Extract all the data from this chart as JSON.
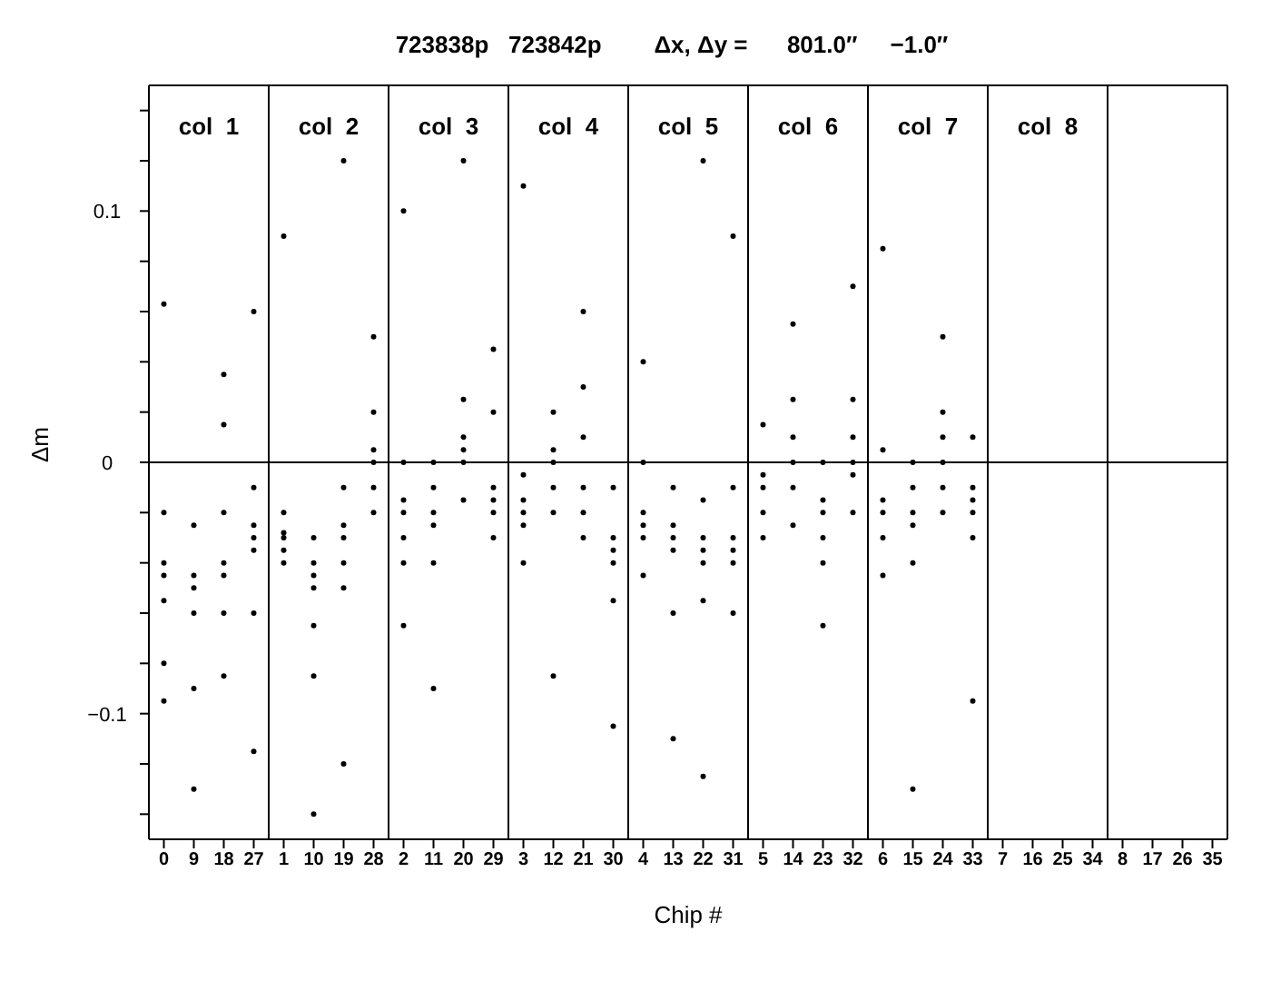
{
  "chart_data": [
    {
      "type": "scatter",
      "ylabel": "Δm",
      "marker": "circle",
      "annotations": [
        "col  1"
      ],
      "categories": [
        "0",
        "9",
        "18",
        "27"
      ],
      "ylim": [
        -0.15,
        0.15
      ],
      "yticks": [
        {
          "value": -0.14,
          "label": null
        },
        {
          "value": -0.12,
          "label": null
        },
        {
          "value": -0.1,
          "label": "−0.1"
        },
        {
          "value": -0.08,
          "label": null
        },
        {
          "value": -0.06,
          "label": null
        },
        {
          "value": -0.04,
          "label": null
        },
        {
          "value": -0.02,
          "label": null
        },
        0,
        {
          "value": 0.02,
          "label": null
        },
        {
          "value": 0.04,
          "label": null
        },
        {
          "value": 0.06,
          "label": null
        },
        {
          "value": 0.08,
          "label": null
        },
        {
          "value": 0.1,
          "label": "0.1"
        },
        {
          "value": 0.12,
          "label": null
        },
        {
          "value": 0.14,
          "label": null
        }
      ],
      "ref_lines": [
        {
          "axis": "y",
          "value": 0,
          "color": "#000000"
        }
      ],
      "series": [
        {
          "color": "#000000",
          "x": [
            "0",
            "0",
            "0",
            "0",
            "0",
            "9",
            "9",
            "9",
            "9",
            "9",
            "18",
            "18",
            "18",
            "18",
            "18",
            "27",
            "27",
            "27",
            "27",
            "27",
            "0",
            "18",
            "27",
            "18",
            "0",
            "9",
            "27"
          ],
          "values": [
            -0.02,
            -0.04,
            -0.08,
            -0.045,
            -0.055,
            -0.025,
            -0.045,
            -0.09,
            -0.05,
            -0.06,
            -0.02,
            -0.045,
            -0.085,
            -0.04,
            -0.06,
            -0.01,
            -0.03,
            -0.06,
            -0.035,
            -0.025,
            0.063,
            0.035,
            0.06,
            0.015,
            -0.095,
            -0.13,
            -0.115
          ]
        }
      ]
    },
    {
      "type": "scatter",
      "marker": "circle",
      "annotations": [
        "col  2"
      ],
      "categories": [
        "1",
        "10",
        "19",
        "28"
      ],
      "ylim": [
        -0.15,
        0.15
      ],
      "tick_labels": "x",
      "ref_lines": [
        {
          "axis": "y",
          "value": 0,
          "color": "#000000"
        }
      ],
      "series": [
        {
          "color": "#000000",
          "x": [
            "1",
            "1",
            "1",
            "1",
            "1",
            "10",
            "10",
            "10",
            "10",
            "10",
            "19",
            "19",
            "19",
            "19",
            "19",
            "28",
            "28",
            "28",
            "28",
            "28",
            "1",
            "19",
            "28",
            "10",
            "19",
            "10"
          ],
          "values": [
            -0.02,
            -0.03,
            -0.04,
            -0.028,
            -0.035,
            -0.03,
            -0.045,
            -0.065,
            -0.05,
            -0.04,
            -0.01,
            -0.03,
            -0.05,
            -0.025,
            -0.04,
            0.02,
            0,
            -0.02,
            0.005,
            -0.01,
            0.09,
            0.12,
            0.05,
            -0.085,
            -0.12,
            -0.14
          ]
        }
      ]
    },
    {
      "type": "scatter",
      "marker": "circle",
      "annotations": [
        "col  3"
      ],
      "categories": [
        "2",
        "11",
        "20",
        "29"
      ],
      "ylim": [
        -0.15,
        0.15
      ],
      "tick_labels": "x",
      "ref_lines": [
        {
          "axis": "y",
          "value": 0,
          "color": "#000000"
        }
      ],
      "series": [
        {
          "color": "#000000",
          "x": [
            "2",
            "2",
            "2",
            "2",
            "2",
            "11",
            "11",
            "11",
            "11",
            "11",
            "20",
            "20",
            "20",
            "20",
            "20",
            "29",
            "29",
            "29",
            "29",
            "29",
            "2",
            "20",
            "11",
            "29",
            "2"
          ],
          "values": [
            0,
            -0.02,
            -0.04,
            -0.015,
            -0.03,
            0,
            -0.02,
            -0.04,
            -0.025,
            -0.01,
            0.025,
            0.005,
            -0.015,
            0.01,
            0,
            0.02,
            -0.015,
            -0.03,
            -0.01,
            -0.02,
            0.1,
            0.12,
            -0.09,
            0.045,
            -0.065
          ]
        }
      ]
    },
    {
      "type": "scatter",
      "marker": "circle",
      "annotations": [
        "col  4"
      ],
      "categories": [
        "3",
        "12",
        "21",
        "30"
      ],
      "ylim": [
        -0.15,
        0.15
      ],
      "tick_labels": "x",
      "ref_lines": [
        {
          "axis": "y",
          "value": 0,
          "color": "#000000"
        }
      ],
      "series": [
        {
          "color": "#000000",
          "x": [
            "3",
            "3",
            "3",
            "3",
            "3",
            "12",
            "12",
            "12",
            "12",
            "12",
            "21",
            "21",
            "21",
            "21",
            "21",
            "30",
            "30",
            "30",
            "30",
            "30",
            "3",
            "21",
            "30",
            "12"
          ],
          "values": [
            -0.005,
            -0.02,
            -0.04,
            -0.025,
            -0.015,
            0.02,
            0,
            -0.02,
            0.005,
            -0.01,
            0.03,
            -0.01,
            -0.03,
            0.01,
            -0.02,
            -0.01,
            -0.035,
            -0.055,
            -0.04,
            -0.03,
            0.11,
            0.06,
            -0.105,
            -0.085
          ]
        }
      ]
    },
    {
      "type": "scatter",
      "title": "723838p   723842p        Δx, Δy =      801.0″     −1.0″",
      "xlabel": "Chip #",
      "marker": "circle",
      "annotations": [
        "col  5"
      ],
      "categories": [
        "4",
        "13",
        "22",
        "31"
      ],
      "ylim": [
        -0.15,
        0.15
      ],
      "tick_labels": "x",
      "ref_lines": [
        {
          "axis": "y",
          "value": 0,
          "color": "#000000"
        }
      ],
      "series": [
        {
          "color": "#000000",
          "x": [
            "4",
            "4",
            "4",
            "4",
            "4",
            "13",
            "13",
            "13",
            "13",
            "13",
            "22",
            "22",
            "22",
            "22",
            "22",
            "31",
            "31",
            "31",
            "31",
            "31",
            "4",
            "22",
            "31",
            "22",
            "13"
          ],
          "values": [
            0,
            -0.025,
            -0.045,
            -0.02,
            -0.03,
            -0.01,
            -0.03,
            -0.06,
            -0.035,
            -0.025,
            -0.015,
            -0.035,
            -0.055,
            -0.03,
            -0.04,
            -0.01,
            -0.035,
            -0.06,
            -0.04,
            -0.03,
            0.04,
            0.12,
            0.09,
            -0.125,
            -0.11
          ]
        }
      ]
    },
    {
      "type": "scatter",
      "marker": "circle",
      "annotations": [
        "col  6"
      ],
      "categories": [
        "5",
        "14",
        "23",
        "32"
      ],
      "ylim": [
        -0.15,
        0.15
      ],
      "tick_labels": "x",
      "ref_lines": [
        {
          "axis": "y",
          "value": 0,
          "color": "#000000"
        }
      ],
      "series": [
        {
          "color": "#000000",
          "x": [
            "5",
            "5",
            "5",
            "5",
            "5",
            "14",
            "14",
            "14",
            "14",
            "14",
            "23",
            "23",
            "23",
            "23",
            "23",
            "32",
            "32",
            "32",
            "32",
            "32",
            "14",
            "32",
            "23"
          ],
          "values": [
            0.015,
            -0.01,
            -0.03,
            -0.005,
            -0.02,
            0.025,
            0,
            -0.025,
            0.01,
            -0.01,
            0,
            -0.02,
            -0.04,
            -0.015,
            -0.03,
            0.025,
            0,
            -0.02,
            0.01,
            -0.005,
            0.055,
            0.07,
            -0.065
          ]
        }
      ]
    },
    {
      "type": "scatter",
      "marker": "circle",
      "annotations": [
        "col  7"
      ],
      "categories": [
        "6",
        "15",
        "24",
        "33"
      ],
      "ylim": [
        -0.15,
        0.15
      ],
      "tick_labels": "x",
      "ref_lines": [
        {
          "axis": "y",
          "value": 0,
          "color": "#000000"
        }
      ],
      "series": [
        {
          "color": "#000000",
          "x": [
            "6",
            "6",
            "6",
            "6",
            "6",
            "15",
            "15",
            "15",
            "15",
            "15",
            "24",
            "24",
            "24",
            "24",
            "24",
            "33",
            "33",
            "33",
            "33",
            "33",
            "6",
            "24",
            "15",
            "33"
          ],
          "values": [
            0.005,
            -0.02,
            -0.045,
            -0.015,
            -0.03,
            0,
            -0.02,
            -0.04,
            -0.025,
            -0.01,
            0.02,
            0,
            -0.02,
            0.01,
            -0.01,
            0.01,
            -0.015,
            -0.03,
            -0.01,
            -0.02,
            0.085,
            0.05,
            -0.13,
            -0.095
          ]
        }
      ]
    },
    {
      "type": "scatter",
      "annotations": [
        "col  8"
      ],
      "categories": [
        "7",
        "16",
        "25",
        "34"
      ],
      "ylim": [
        -0.15,
        0.15
      ],
      "tick_labels": "x",
      "ref_lines": [
        {
          "axis": "y",
          "value": 0,
          "color": "#000000"
        }
      ]
    },
    {
      "type": "scatter",
      "categories": [
        "8",
        "17",
        "26",
        "35"
      ],
      "ylim": [
        -0.15,
        0.15
      ],
      "tick_labels": "x",
      "ref_lines": [
        {
          "axis": "y",
          "value": 0,
          "color": "#000000"
        }
      ]
    }
  ]
}
